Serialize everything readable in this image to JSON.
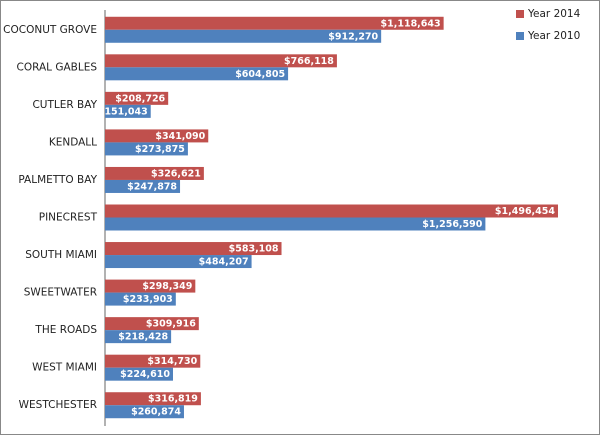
{
  "chart_data": {
    "type": "hbar",
    "categories": [
      "COCONUT GROVE",
      "CORAL GABLES",
      "CUTLER BAY",
      "KENDALL",
      "PALMETTO BAY",
      "PINECREST",
      "SOUTH MIAMI",
      "SWEETWATER",
      "THE ROADS",
      "WEST MIAMI",
      "WESTCHESTER"
    ],
    "series": [
      {
        "name": "Year 2014",
        "color": "#c0504d",
        "values": [
          1118643,
          766118,
          208726,
          341090,
          326621,
          1496454,
          583108,
          298349,
          309916,
          314730,
          316819
        ],
        "value_labels": [
          "$1,118,643",
          "$766,118",
          "$208,726",
          "$341,090",
          "$326,621",
          "$1,496,454",
          "$583,108",
          "$298,349",
          "$309,916",
          "$314,730",
          "$316,819"
        ]
      },
      {
        "name": "Year 2010",
        "color": "#4f81bd",
        "values": [
          912270,
          604805,
          151043,
          273875,
          247878,
          1256590,
          484207,
          233903,
          218428,
          224610,
          260874
        ],
        "value_labels": [
          "$912,270",
          "$604,805",
          "$151,043",
          "$273,875",
          "$247,878",
          "$1,256,590",
          "$484,207",
          "$233,903",
          "$218,428",
          "$224,610",
          "$260,874"
        ]
      }
    ],
    "legend": "top-right"
  }
}
